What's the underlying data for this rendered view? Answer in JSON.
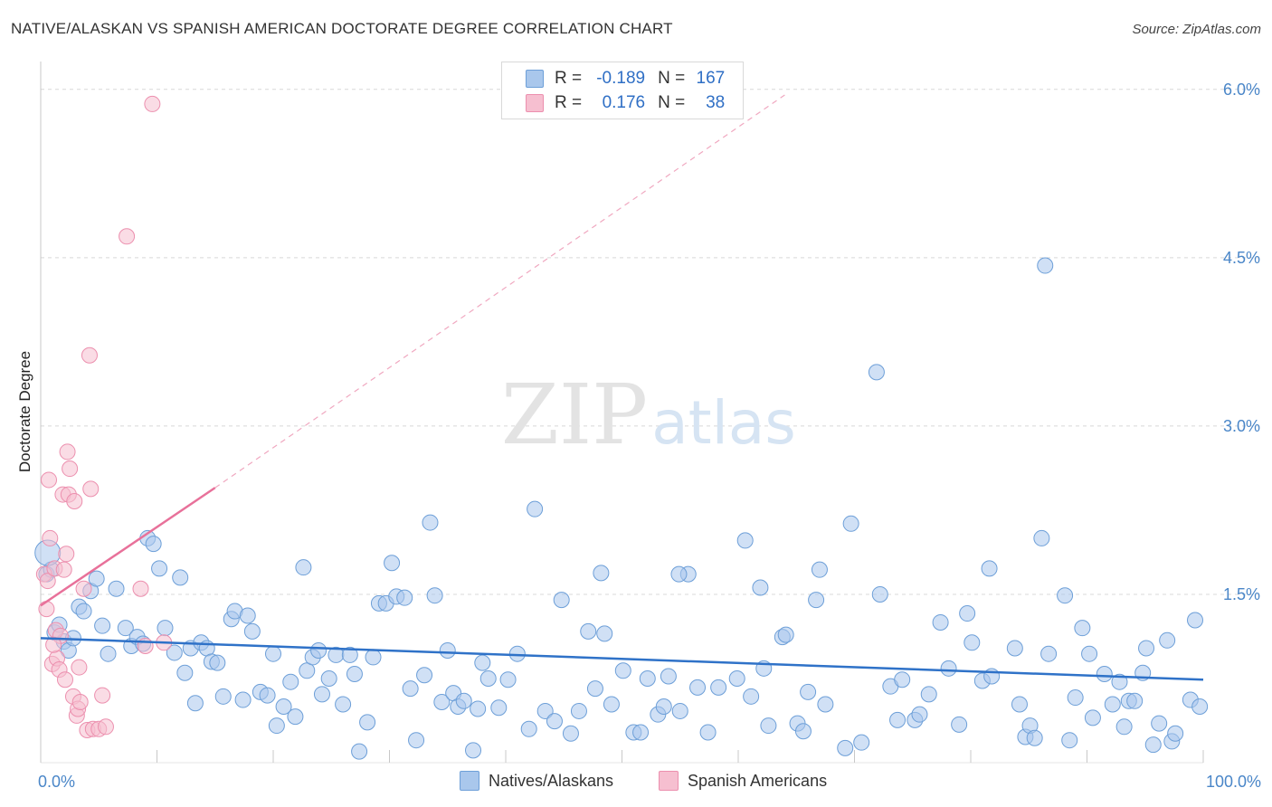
{
  "header": {
    "title": "NATIVE/ALASKAN VS SPANISH AMERICAN DOCTORATE DEGREE CORRELATION CHART",
    "source": "Source: ZipAtlas.com"
  },
  "watermark": {
    "zip": "ZIP",
    "atlas": "atlas"
  },
  "legend": {
    "rows": [
      {
        "r_label": "R =",
        "r_value": "-0.189",
        "n_label": "N =",
        "n_value": "167"
      },
      {
        "r_label": "R =",
        "r_value": "0.176",
        "n_label": "N =",
        "n_value": "38"
      }
    ]
  },
  "bottom_legend": {
    "natives": "Natives/Alaskans",
    "spanish": "Spanish Americans"
  },
  "colors": {
    "natives_fill": "#a9c7ec",
    "natives_stroke": "#6d9fd8",
    "natives_line": "#2f72c8",
    "spanish_fill": "#f6bfd0",
    "spanish_stroke": "#ec8fae",
    "spanish_line": "#e8719a",
    "grid": "#d8d8d8",
    "axis_text": "#4a86c8"
  },
  "chart_data": {
    "type": "scatter",
    "title": "NATIVE/ALASKAN VS SPANISH AMERICAN DOCTORATE DEGREE CORRELATION CHART",
    "xlabel": "",
    "ylabel": "Doctorate Degree",
    "xlim": [
      0,
      100
    ],
    "ylim": [
      0,
      6.2
    ],
    "x_tick_labels": [
      {
        "value": 0,
        "label": "0.0%"
      },
      {
        "value": 100,
        "label": "100.0%"
      }
    ],
    "y_tick_labels": [
      {
        "value": 1.5,
        "label": "1.5%"
      },
      {
        "value": 3.0,
        "label": "3.0%"
      },
      {
        "value": 4.5,
        "label": "4.5%"
      },
      {
        "value": 6.0,
        "label": "6.0%"
      }
    ],
    "series": [
      {
        "name": "Natives/Alaskans",
        "R": -0.189,
        "N": 167,
        "trend": {
          "x0": 0,
          "y0": 1.11,
          "x1": 100,
          "y1": 0.74
        },
        "big_points": [
          [
            0.6,
            1.87
          ]
        ],
        "points": [
          [
            0.5,
            1.68
          ],
          [
            0.9,
            1.72
          ],
          [
            1.2,
            1.16
          ],
          [
            1.6,
            1.23
          ],
          [
            2.0,
            1.08
          ],
          [
            2.4,
            1.0
          ],
          [
            2.8,
            1.11
          ],
          [
            3.3,
            1.39
          ],
          [
            3.7,
            1.35
          ],
          [
            4.3,
            1.53
          ],
          [
            4.8,
            1.64
          ],
          [
            5.3,
            1.22
          ],
          [
            5.8,
            0.97
          ],
          [
            6.5,
            1.55
          ],
          [
            7.3,
            1.2
          ],
          [
            7.8,
            1.04
          ],
          [
            8.3,
            1.12
          ],
          [
            8.8,
            1.06
          ],
          [
            9.2,
            2.0
          ],
          [
            9.7,
            1.95
          ],
          [
            10.2,
            1.73
          ],
          [
            10.7,
            1.2
          ],
          [
            11.5,
            0.98
          ],
          [
            12.0,
            1.65
          ],
          [
            12.4,
            0.8
          ],
          [
            12.9,
            1.02
          ],
          [
            13.3,
            0.53
          ],
          [
            13.8,
            1.07
          ],
          [
            14.3,
            1.02
          ],
          [
            14.7,
            0.9
          ],
          [
            15.2,
            0.89
          ],
          [
            15.7,
            0.59
          ],
          [
            16.4,
            1.28
          ],
          [
            16.7,
            1.35
          ],
          [
            17.4,
            0.56
          ],
          [
            17.8,
            1.31
          ],
          [
            18.2,
            1.17
          ],
          [
            18.9,
            0.63
          ],
          [
            19.5,
            0.6
          ],
          [
            20.0,
            0.97
          ],
          [
            20.3,
            0.33
          ],
          [
            20.9,
            0.5
          ],
          [
            21.5,
            0.72
          ],
          [
            21.9,
            0.41
          ],
          [
            22.6,
            1.74
          ],
          [
            22.9,
            0.82
          ],
          [
            23.4,
            0.94
          ],
          [
            23.9,
            1.0
          ],
          [
            24.2,
            0.61
          ],
          [
            24.8,
            0.75
          ],
          [
            25.4,
            0.96
          ],
          [
            26.0,
            0.52
          ],
          [
            26.6,
            0.96
          ],
          [
            27.0,
            0.79
          ],
          [
            27.4,
            0.1
          ],
          [
            28.1,
            0.36
          ],
          [
            28.6,
            0.94
          ],
          [
            29.1,
            1.42
          ],
          [
            29.7,
            1.42
          ],
          [
            30.2,
            1.78
          ],
          [
            30.6,
            1.48
          ],
          [
            31.3,
            1.47
          ],
          [
            31.8,
            0.66
          ],
          [
            32.3,
            0.2
          ],
          [
            33.0,
            0.78
          ],
          [
            33.5,
            2.14
          ],
          [
            33.9,
            1.49
          ],
          [
            34.5,
            0.54
          ],
          [
            35.0,
            1.0
          ],
          [
            35.5,
            0.62
          ],
          [
            35.9,
            0.5
          ],
          [
            36.4,
            0.55
          ],
          [
            37.2,
            0.11
          ],
          [
            37.6,
            0.48
          ],
          [
            38.0,
            0.89
          ],
          [
            38.5,
            0.75
          ],
          [
            39.4,
            0.49
          ],
          [
            40.2,
            0.74
          ],
          [
            41.0,
            0.97
          ],
          [
            42.0,
            0.3
          ],
          [
            42.5,
            2.26
          ],
          [
            43.4,
            0.46
          ],
          [
            44.2,
            0.37
          ],
          [
            44.8,
            1.45
          ],
          [
            45.6,
            0.26
          ],
          [
            46.3,
            0.46
          ],
          [
            47.1,
            1.17
          ],
          [
            47.7,
            0.66
          ],
          [
            48.2,
            1.69
          ],
          [
            48.5,
            1.15
          ],
          [
            49.1,
            0.52
          ],
          [
            50.1,
            0.82
          ],
          [
            51.0,
            0.27
          ],
          [
            51.6,
            0.27
          ],
          [
            52.2,
            0.75
          ],
          [
            53.1,
            0.43
          ],
          [
            53.6,
            0.5
          ],
          [
            54.0,
            0.77
          ],
          [
            55.0,
            0.46
          ],
          [
            55.7,
            1.68
          ],
          [
            56.5,
            0.67
          ],
          [
            57.4,
            0.27
          ],
          [
            58.3,
            0.67
          ],
          [
            59.9,
            0.75
          ],
          [
            60.6,
            1.98
          ],
          [
            61.1,
            0.59
          ],
          [
            61.9,
            1.56
          ],
          [
            62.2,
            0.84
          ],
          [
            62.6,
            0.33
          ],
          [
            63.8,
            1.12
          ],
          [
            64.1,
            1.14
          ],
          [
            65.1,
            0.35
          ],
          [
            65.6,
            0.28
          ],
          [
            66.0,
            0.63
          ],
          [
            66.7,
            1.45
          ],
          [
            67.0,
            1.72
          ],
          [
            67.5,
            0.52
          ],
          [
            69.2,
            0.13
          ],
          [
            69.7,
            2.13
          ],
          [
            70.6,
            0.18
          ],
          [
            71.9,
            3.48
          ],
          [
            72.2,
            1.5
          ],
          [
            73.1,
            0.68
          ],
          [
            73.7,
            0.38
          ],
          [
            74.1,
            0.74
          ],
          [
            75.2,
            0.38
          ],
          [
            75.6,
            0.43
          ],
          [
            76.4,
            0.61
          ],
          [
            77.4,
            1.25
          ],
          [
            78.1,
            0.84
          ],
          [
            79.0,
            0.34
          ],
          [
            79.7,
            1.33
          ],
          [
            80.1,
            1.07
          ],
          [
            81.0,
            0.73
          ],
          [
            81.6,
            1.73
          ],
          [
            81.8,
            0.77
          ],
          [
            83.8,
            1.02
          ],
          [
            84.2,
            0.52
          ],
          [
            84.7,
            0.23
          ],
          [
            85.1,
            0.33
          ],
          [
            85.5,
            0.22
          ],
          [
            86.4,
            4.43
          ],
          [
            86.7,
            0.97
          ],
          [
            88.1,
            1.49
          ],
          [
            88.5,
            0.2
          ],
          [
            89.0,
            0.58
          ],
          [
            89.6,
            1.2
          ],
          [
            90.2,
            0.97
          ],
          [
            90.5,
            0.4
          ],
          [
            91.5,
            0.79
          ],
          [
            92.2,
            0.52
          ],
          [
            92.8,
            0.72
          ],
          [
            93.2,
            0.32
          ],
          [
            93.6,
            0.55
          ],
          [
            94.1,
            0.55
          ],
          [
            94.8,
            0.8
          ],
          [
            95.1,
            1.02
          ],
          [
            95.7,
            0.16
          ],
          [
            96.2,
            0.35
          ],
          [
            96.9,
            1.09
          ],
          [
            97.3,
            0.19
          ],
          [
            97.6,
            0.26
          ],
          [
            98.9,
            0.56
          ],
          [
            99.3,
            1.27
          ],
          [
            99.7,
            0.5
          ],
          [
            86.1,
            2.0
          ],
          [
            54.9,
            1.68
          ]
        ]
      },
      {
        "name": "Spanish Americans",
        "R": 0.176,
        "N": 38,
        "trend_solid": {
          "x0": 0,
          "y0": 1.4,
          "x1": 15,
          "y1": 2.45
        },
        "trend_dashed": {
          "x0": 15,
          "y0": 2.45,
          "x1": 64,
          "y1": 5.95
        },
        "points": [
          [
            0.3,
            1.68
          ],
          [
            0.5,
            1.37
          ],
          [
            0.7,
            2.52
          ],
          [
            0.6,
            1.62
          ],
          [
            0.8,
            2.0
          ],
          [
            1.0,
            0.88
          ],
          [
            1.2,
            1.73
          ],
          [
            1.3,
            1.18
          ],
          [
            1.4,
            0.93
          ],
          [
            1.6,
            0.83
          ],
          [
            1.7,
            1.13
          ],
          [
            1.9,
            2.39
          ],
          [
            2.0,
            1.72
          ],
          [
            2.1,
            0.74
          ],
          [
            2.2,
            1.86
          ],
          [
            2.3,
            2.77
          ],
          [
            2.4,
            2.39
          ],
          [
            2.5,
            2.62
          ],
          [
            2.8,
            0.59
          ],
          [
            2.9,
            2.33
          ],
          [
            3.1,
            0.42
          ],
          [
            3.2,
            0.48
          ],
          [
            3.3,
            0.85
          ],
          [
            3.4,
            0.54
          ],
          [
            3.7,
            1.55
          ],
          [
            4.0,
            0.29
          ],
          [
            4.2,
            3.63
          ],
          [
            4.3,
            2.44
          ],
          [
            4.5,
            0.3
          ],
          [
            5.0,
            0.3
          ],
          [
            5.3,
            0.6
          ],
          [
            5.6,
            0.32
          ],
          [
            7.4,
            4.69
          ],
          [
            8.6,
            1.55
          ],
          [
            9.0,
            1.04
          ],
          [
            9.6,
            5.87
          ],
          [
            10.6,
            1.07
          ],
          [
            1.1,
            1.05
          ]
        ]
      }
    ]
  }
}
